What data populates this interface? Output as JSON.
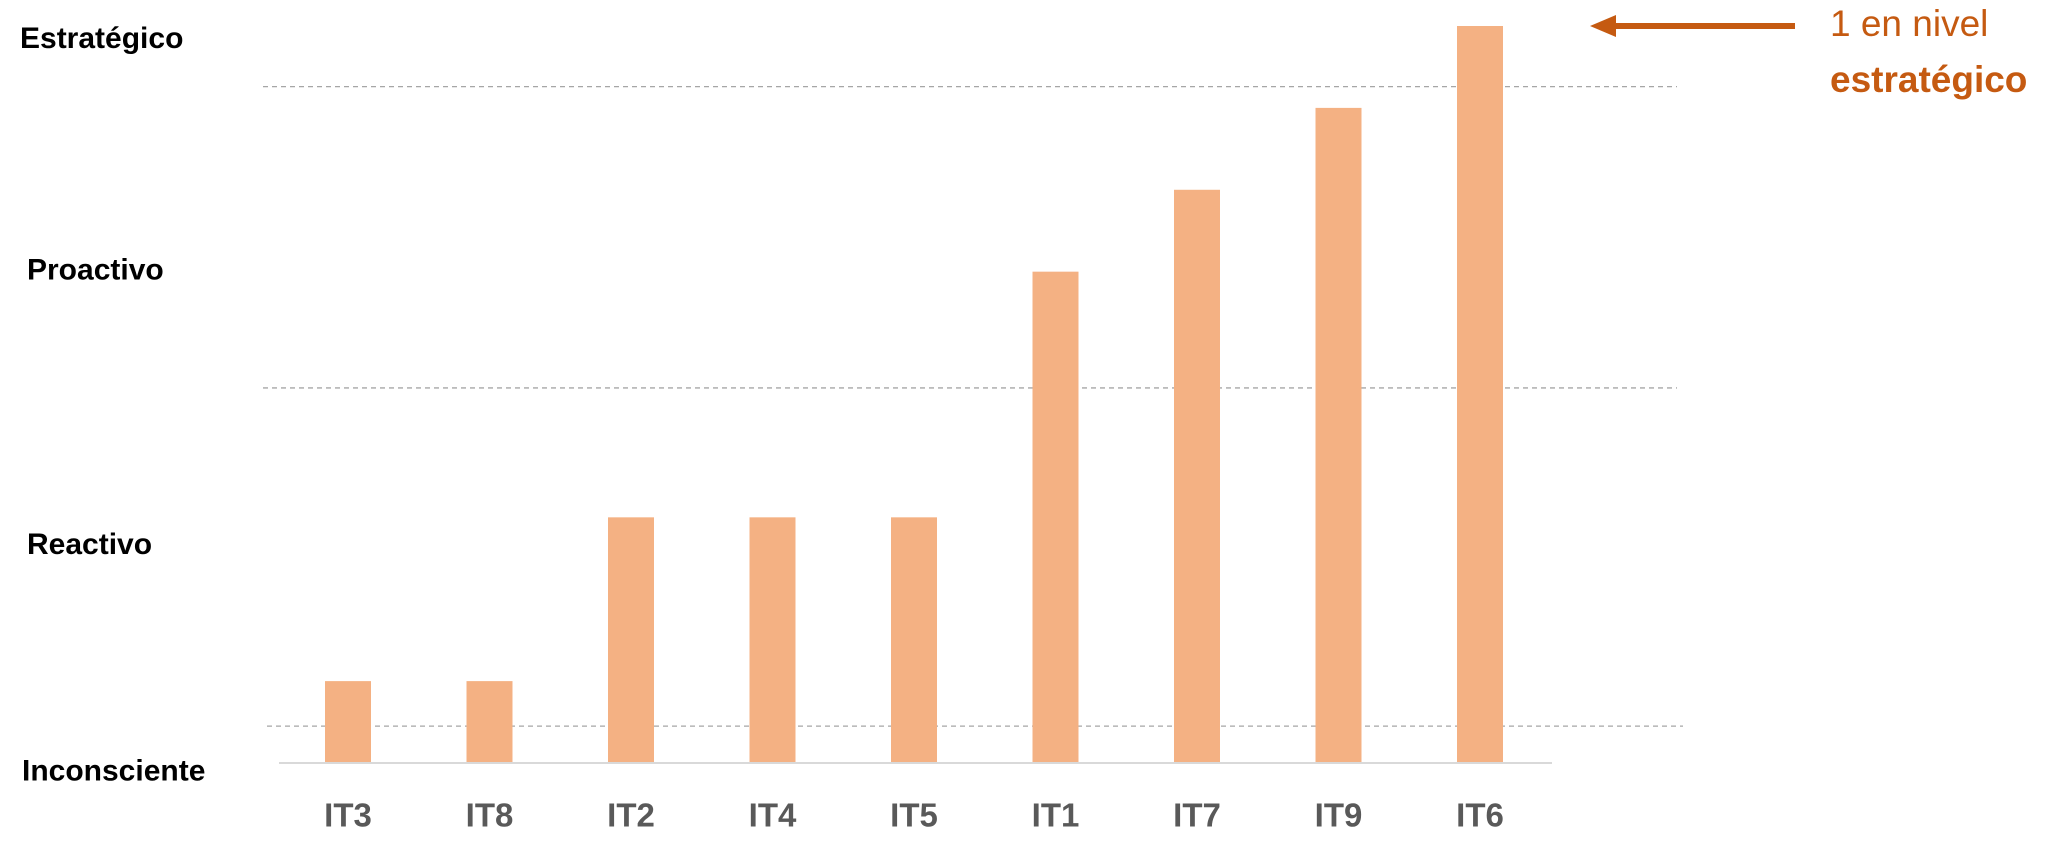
{
  "chart_data": {
    "type": "bar",
    "categories": [
      "IT3",
      "IT8",
      "IT2",
      "IT4",
      "IT5",
      "IT1",
      "IT7",
      "IT9",
      "IT6"
    ],
    "values": [
      1,
      1,
      3,
      3,
      3,
      6,
      7,
      8,
      9
    ],
    "color": "#f4b183",
    "ylim": [
      0,
      9
    ],
    "yticks": [
      {
        "value": -0.12,
        "label": "Inconsciente"
      },
      {
        "value": 2.65,
        "label": "Reactivo"
      },
      {
        "value": 6.0,
        "label": "Proactivo"
      },
      {
        "value": 8.83,
        "label": "Estratégico"
      }
    ],
    "thresholds": [
      0.45,
      4.58,
      8.26
    ],
    "annotation": {
      "text": "1 en nivel",
      "emphasis": "estratégico",
      "color": "#c55a11"
    }
  }
}
